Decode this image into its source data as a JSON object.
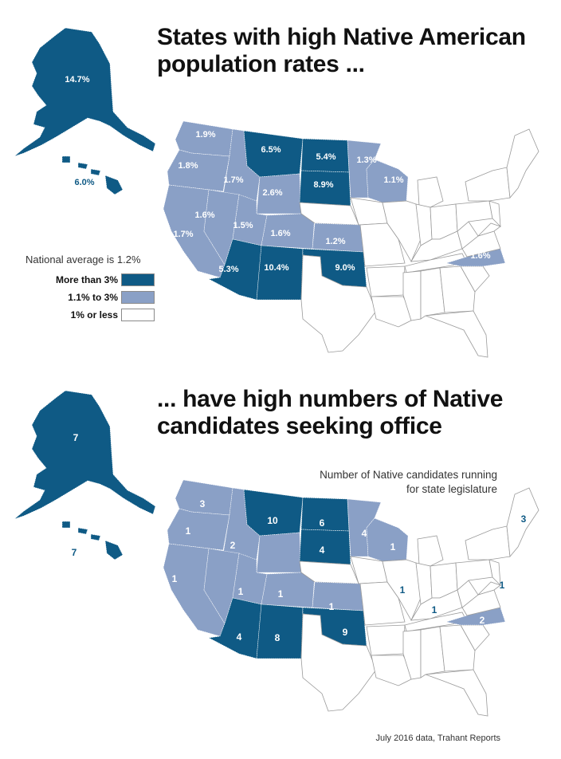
{
  "colors": {
    "high": "#0f5a85",
    "mid": "#8aa0c6",
    "low": "#ffffff",
    "border": "#9a9a9a"
  },
  "map_top": {
    "title_line1": "States with high Native American",
    "title_line2": "population rates ...",
    "legend": {
      "title": "National average is 1.2%",
      "items": [
        {
          "label": "More than 3%",
          "color": "#0f5a85"
        },
        {
          "label": "1.1% to 3%",
          "color": "#8aa0c6"
        },
        {
          "label": "1% or less",
          "color": "#ffffff"
        }
      ]
    },
    "labels": {
      "AK": "14.7%",
      "HI": "6.0%",
      "WA": "1.9%",
      "OR": "1.8%",
      "ID": "1.7%",
      "MT": "6.5%",
      "ND": "5.4%",
      "SD": "8.9%",
      "MN": "1.3%",
      "WI": "1.1%",
      "WY": "2.6%",
      "NV": "1.6%",
      "UT": "1.5%",
      "CO": "1.6%",
      "CA": "1.7%",
      "KS": "1.2%",
      "AZ": "5.3%",
      "NM": "10.4%",
      "OK": "9.0%",
      "NC": "1.6%"
    }
  },
  "map_bottom": {
    "title_line1": "... have high numbers of Native",
    "title_line2": "candidates seeking office",
    "note_line1": "Number of Native candidates running",
    "note_line2": "for state legislature",
    "labels": {
      "AK": "7",
      "HI": "7",
      "WA": "3",
      "OR": "1",
      "ID": "2",
      "MT": "10",
      "ND": "6",
      "SD": "4",
      "MN": "4",
      "WI": "1",
      "CA": "1",
      "UT": "1",
      "CO": "1",
      "KS": "1",
      "AZ": "4",
      "NM": "8",
      "OK": "9",
      "NC": "2",
      "IL": "1",
      "KY": "1",
      "MD": "1",
      "ME": "3"
    }
  },
  "source": "July 2016 data, Trahant Reports"
}
